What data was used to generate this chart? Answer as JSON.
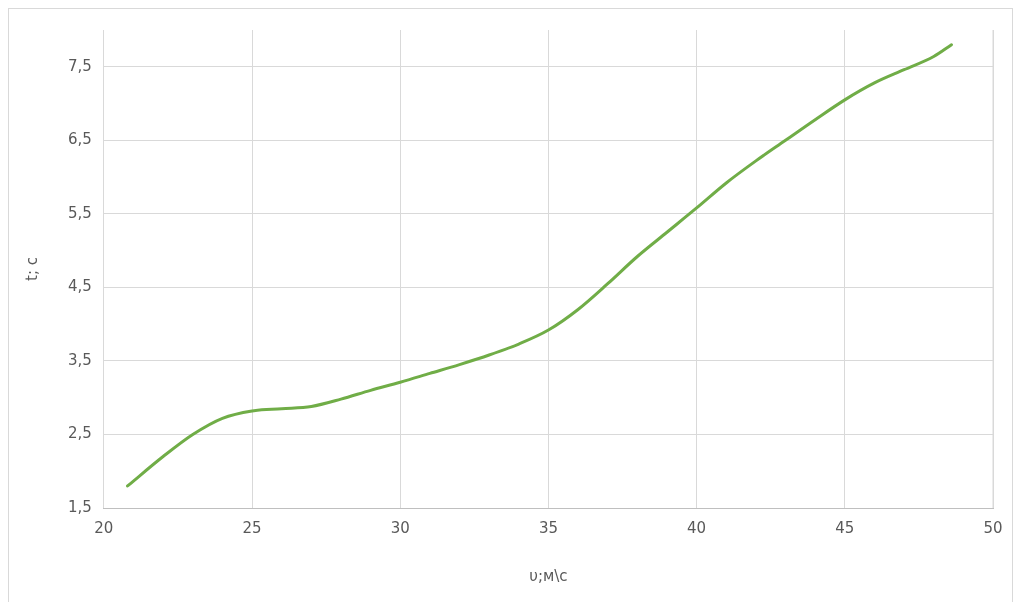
{
  "chart_data": {
    "type": "line",
    "xlabel": "υ;м\\с",
    "ylabel": "t; с",
    "x": [
      20.8,
      22,
      23,
      24,
      25,
      26,
      27,
      28,
      29,
      30,
      31,
      32,
      33,
      34,
      35,
      36,
      37,
      38,
      39,
      40,
      41,
      42,
      43,
      44,
      45,
      46,
      47,
      48,
      48.6
    ],
    "series": [
      {
        "color": "#70ad47",
        "values": [
          1.8,
          2.2,
          2.5,
          2.72,
          2.82,
          2.85,
          2.88,
          2.98,
          3.1,
          3.21,
          3.33,
          3.45,
          3.58,
          3.73,
          3.92,
          4.2,
          4.55,
          4.92,
          5.25,
          5.58,
          5.92,
          6.22,
          6.5,
          6.78,
          7.05,
          7.28,
          7.46,
          7.64,
          7.8
        ]
      }
    ],
    "xlim": [
      20,
      50
    ],
    "xticks": [
      20,
      25,
      30,
      35,
      40,
      45,
      50
    ],
    "ylim": [
      1.5,
      8
    ],
    "yticks": [
      {
        "value": 1.5,
        "label": "1,5"
      },
      {
        "value": 2.5,
        "label": "2,5"
      },
      {
        "value": 3.5,
        "label": "3,5"
      },
      {
        "value": 4.5,
        "label": "4,5"
      },
      {
        "value": 5.5,
        "label": "5,5"
      },
      {
        "value": 6.5,
        "label": "6,5"
      },
      {
        "value": 7.5,
        "label": "7,5"
      }
    ],
    "grid": true,
    "legend": false,
    "marker": "none",
    "line_style": "solid"
  }
}
